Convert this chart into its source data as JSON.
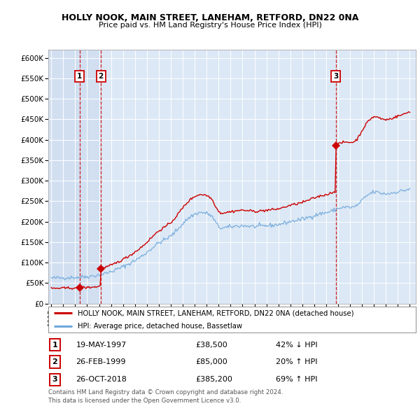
{
  "title": "HOLLY NOOK, MAIN STREET, LANEHAM, RETFORD, DN22 0NA",
  "subtitle": "Price paid vs. HM Land Registry's House Price Index (HPI)",
  "sales": [
    {
      "label": "1",
      "date_num": 1997.38,
      "price": 38500,
      "hpi_rel": "42% ↓ HPI",
      "date_str": "19-MAY-1997"
    },
    {
      "label": "2",
      "date_num": 1999.15,
      "price": 85000,
      "hpi_rel": "20% ↑ HPI",
      "date_str": "26-FEB-1999"
    },
    {
      "label": "3",
      "date_num": 2018.82,
      "price": 385200,
      "hpi_rel": "69% ↑ HPI",
      "date_str": "26-OCT-2018"
    }
  ],
  "legend_line1": "HOLLY NOOK, MAIN STREET, LANEHAM, RETFORD, DN22 0NA (detached house)",
  "legend_line2": "HPI: Average price, detached house, Bassetlaw",
  "footnote1": "Contains HM Land Registry data © Crown copyright and database right 2024.",
  "footnote2": "This data is licensed under the Open Government Licence v3.0.",
  "red_color": "#cc0000",
  "blue_color": "#6fa8dc",
  "shade_color": "#dce8f5",
  "background_color": "#dce8f5",
  "ylim": [
    0,
    620000
  ],
  "xlim": [
    1994.75,
    2025.5
  ]
}
